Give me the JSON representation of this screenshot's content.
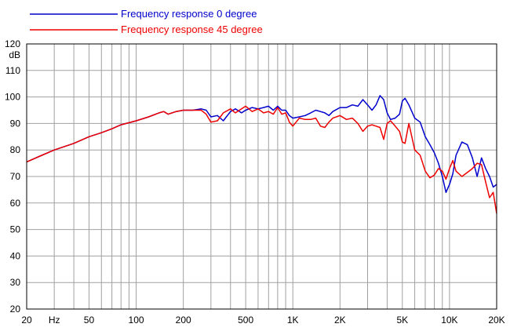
{
  "chart_data": {
    "type": "line",
    "xscale": "log",
    "xlim": [
      20,
      20000
    ],
    "ylim": [
      20,
      120
    ],
    "ylabel": "dB",
    "x_tick_labels": [
      {
        "x": 20,
        "label": "20"
      },
      {
        "x": 30,
        "label": "Hz"
      },
      {
        "x": 50,
        "label": "50"
      },
      {
        "x": 100,
        "label": "100"
      },
      {
        "x": 200,
        "label": "200"
      },
      {
        "x": 500,
        "label": "500"
      },
      {
        "x": 1000,
        "label": "1K"
      },
      {
        "x": 2000,
        "label": "2K"
      },
      {
        "x": 5000,
        "label": "5K"
      },
      {
        "x": 10000,
        "label": "10K"
      },
      {
        "x": 20000,
        "label": "20K"
      }
    ],
    "y_ticks": [
      120,
      110,
      100,
      90,
      80,
      70,
      60,
      50,
      40,
      30,
      20
    ],
    "grid": true,
    "legend_position": "top-left",
    "series": [
      {
        "name": "Frequency response 0 degree",
        "color": "#0000cc",
        "x": [
          20,
          25,
          30,
          40,
          50,
          60,
          70,
          80,
          100,
          120,
          140,
          150,
          160,
          180,
          200,
          230,
          260,
          280,
          300,
          330,
          360,
          400,
          430,
          470,
          500,
          550,
          600,
          650,
          700,
          750,
          800,
          850,
          900,
          950,
          1000,
          1100,
          1200,
          1300,
          1400,
          1500,
          1600,
          1700,
          1800,
          2000,
          2200,
          2400,
          2600,
          2800,
          3000,
          3200,
          3400,
          3600,
          3800,
          4000,
          4200,
          4500,
          4800,
          5000,
          5200,
          5500,
          6000,
          6500,
          7000,
          7500,
          8000,
          8500,
          9000,
          9500,
          10000,
          10500,
          11000,
          12000,
          13000,
          14000,
          15000,
          16000,
          17000,
          18000,
          19000,
          20000
        ],
        "y": [
          75.5,
          78,
          80,
          82.5,
          85,
          86.5,
          88,
          89.5,
          91,
          92.5,
          94,
          94.5,
          93.5,
          94.5,
          95,
          95,
          95.5,
          95,
          92.5,
          93,
          91,
          94.5,
          95.5,
          94,
          95,
          96,
          95.5,
          96,
          96.5,
          95,
          96.5,
          95,
          95,
          93,
          92,
          92.5,
          93,
          94,
          95,
          94.5,
          94,
          93,
          94.5,
          96,
          96,
          97,
          96.5,
          99,
          97,
          95,
          97,
          100.5,
          99,
          94,
          91.5,
          92,
          93.5,
          98.5,
          99.5,
          97,
          92,
          90.5,
          85,
          82,
          79,
          75,
          70,
          64,
          67,
          71,
          78,
          83,
          82,
          77,
          70,
          77,
          73,
          70,
          66,
          67
        ]
      },
      {
        "name": "Frequency response 45 degree",
        "color": "#ee0000",
        "x": [
          20,
          25,
          30,
          40,
          50,
          60,
          70,
          80,
          100,
          120,
          140,
          150,
          160,
          180,
          200,
          230,
          260,
          280,
          300,
          330,
          360,
          400,
          430,
          470,
          500,
          550,
          600,
          650,
          700,
          750,
          800,
          850,
          900,
          950,
          1000,
          1100,
          1200,
          1300,
          1400,
          1500,
          1600,
          1700,
          1800,
          2000,
          2200,
          2400,
          2600,
          2800,
          3000,
          3200,
          3400,
          3600,
          3800,
          4000,
          4200,
          4500,
          4800,
          5000,
          5200,
          5500,
          6000,
          6500,
          7000,
          7500,
          8000,
          8500,
          9000,
          9500,
          10000,
          10500,
          11000,
          12000,
          13000,
          14000,
          15000,
          16000,
          17000,
          18000,
          19000,
          20000
        ],
        "y": [
          75.5,
          78,
          80,
          82.5,
          85,
          86.5,
          88,
          89.5,
          91,
          92.5,
          94,
          94.5,
          93.5,
          94.5,
          95,
          95,
          95,
          93.5,
          90.5,
          91,
          94,
          95.5,
          94,
          95.5,
          96.5,
          94.5,
          95.5,
          94,
          94.5,
          93.5,
          96,
          93.5,
          94,
          90.5,
          89,
          92,
          91.5,
          91.5,
          92,
          89,
          88.5,
          90.5,
          92,
          93,
          91.5,
          92,
          90,
          87,
          89,
          89.5,
          89,
          88.5,
          84,
          90,
          91,
          89,
          87,
          83,
          82.5,
          90,
          80,
          78,
          72,
          69.5,
          70.5,
          73,
          72,
          69,
          73,
          76,
          72,
          70,
          71.5,
          73,
          75,
          74.5,
          68,
          62,
          64,
          56
        ]
      }
    ]
  }
}
